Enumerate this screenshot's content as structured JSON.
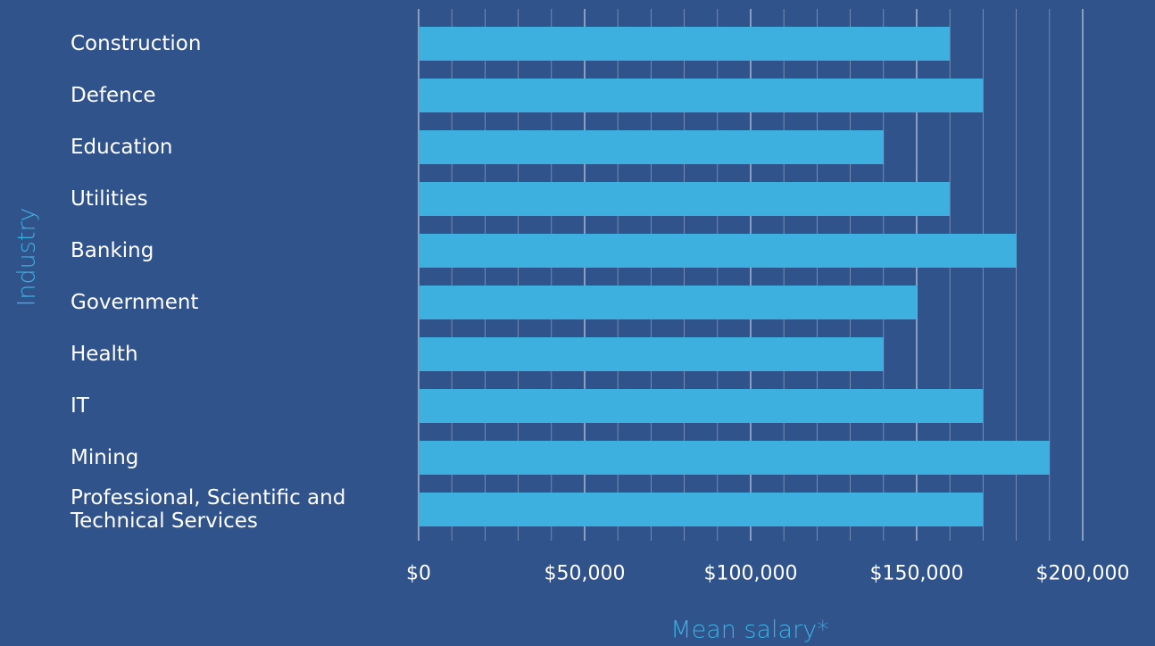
{
  "background": "#31538c",
  "chart_data": {
    "type": "bar",
    "orientation": "horizontal",
    "categories": [
      "Construction",
      "Defence",
      "Education",
      "Utilities",
      "Banking",
      "Government",
      "Health",
      "IT",
      "Mining",
      "Professional, Scientific and Technical Services"
    ],
    "category_lines": [
      [
        "Construction"
      ],
      [
        "Defence"
      ],
      [
        "Education"
      ],
      [
        "Utilities"
      ],
      [
        "Banking"
      ],
      [
        "Government"
      ],
      [
        "Health"
      ],
      [
        "IT"
      ],
      [
        "Mining"
      ],
      [
        "Professional, Scientific and",
        "Technical Services"
      ]
    ],
    "values": [
      160000,
      170000,
      140000,
      160000,
      180000,
      150000,
      140000,
      170000,
      190000,
      170000
    ],
    "xlabel": "Mean salary*",
    "ylabel": "Industry",
    "xlim": [
      0,
      200000
    ],
    "major_ticks": [
      0,
      50000,
      100000,
      150000,
      200000
    ],
    "tick_labels": [
      "$0",
      "$50,000",
      "$100,000",
      "$150,000",
      "$200,000"
    ],
    "minor_tick_step": 10000,
    "grid": true,
    "bar_color": "#3eb0e0",
    "axis_title_color": "#3eb0e0",
    "text_color": "#ffffff",
    "grid_color": "#c9d3e3"
  }
}
